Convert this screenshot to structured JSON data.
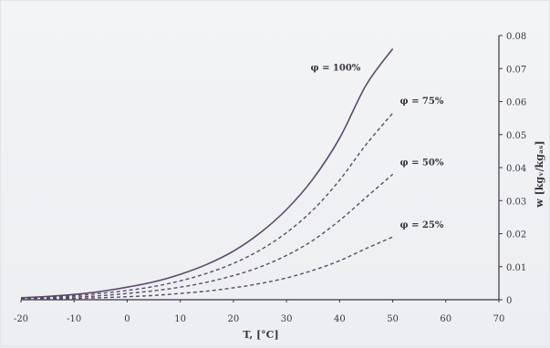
{
  "chart_data": {
    "type": "line",
    "xlabel": "T, [°C]",
    "ylabel": "w [kgᵥ/kgₐₛ]",
    "xlim": [
      -20,
      70
    ],
    "ylim": [
      0,
      0.08
    ],
    "x_ticks": [
      "-20",
      "-10",
      "0",
      "10",
      "20",
      "30",
      "40",
      "50",
      "60",
      "70"
    ],
    "y_ticks": [
      "0",
      "0.01",
      "0.02",
      "0.03",
      "0.04",
      "0.05",
      "0.06",
      "0.07",
      "0.08"
    ],
    "series": [
      {
        "name": "φ = 100%",
        "style": "solid",
        "x": [
          -20,
          -15,
          -10,
          -5,
          0,
          5,
          10,
          15,
          20,
          25,
          30,
          35,
          40,
          45,
          50
        ],
        "y": [
          0.0006,
          0.001,
          0.0016,
          0.0025,
          0.0038,
          0.0054,
          0.0077,
          0.0107,
          0.0147,
          0.0202,
          0.0273,
          0.0366,
          0.0489,
          0.065,
          0.076
        ]
      },
      {
        "name": "φ = 75%",
        "style": "dashed",
        "x": [
          -20,
          -15,
          -10,
          -5,
          0,
          5,
          10,
          15,
          20,
          25,
          30,
          35,
          40,
          45,
          50
        ],
        "y": [
          0.0005,
          0.0007,
          0.0012,
          0.0019,
          0.0028,
          0.004,
          0.0057,
          0.008,
          0.011,
          0.015,
          0.0203,
          0.0272,
          0.0362,
          0.047,
          0.0565
        ]
      },
      {
        "name": "φ = 50%",
        "style": "dashed",
        "x": [
          -20,
          -15,
          -10,
          -5,
          0,
          5,
          10,
          15,
          20,
          25,
          30,
          35,
          40,
          45,
          50
        ],
        "y": [
          0.0003,
          0.0005,
          0.0008,
          0.0012,
          0.0019,
          0.0027,
          0.0038,
          0.0053,
          0.0073,
          0.0099,
          0.0134,
          0.018,
          0.024,
          0.031,
          0.038
        ]
      },
      {
        "name": "φ = 25%",
        "style": "dashed",
        "x": [
          -20,
          -15,
          -10,
          -5,
          0,
          5,
          10,
          15,
          20,
          25,
          30,
          35,
          40,
          45,
          50
        ],
        "y": [
          0.0002,
          0.0003,
          0.0004,
          0.0006,
          0.0009,
          0.0013,
          0.0019,
          0.0026,
          0.0036,
          0.0049,
          0.0066,
          0.0089,
          0.0118,
          0.0155,
          0.019
        ]
      }
    ],
    "grid": false,
    "legend": "labels next to curve ends"
  },
  "colors": {
    "curve": "#5a4a6a",
    "axis": "#3a3540",
    "background": "#eef0f3"
  }
}
